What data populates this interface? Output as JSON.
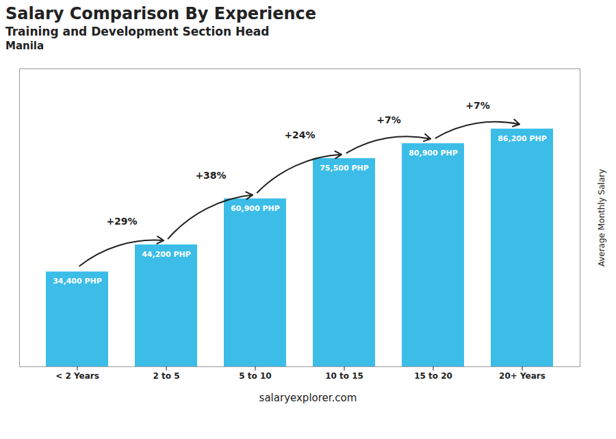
{
  "chart_data": {
    "type": "bar",
    "title": "Salary Comparison By Experience",
    "subtitle": "Training and Development Section Head",
    "categories": [
      "< 2 Years",
      "2 to 5",
      "5 to 10",
      "10 to 15",
      "15 to 20",
      "20+ Years"
    ],
    "values": [
      34400,
      44200,
      60900,
      75500,
      80900,
      86200
    ],
    "value_labels": [
      "34,400 PHP",
      "44,200 PHP",
      "60,900 PHP",
      "75,500 PHP",
      "80,900 PHP",
      "86,200 PHP"
    ],
    "data_labels": true,
    "color": "#3bbde8",
    "ylabel": "Average Monthly Salary",
    "ylim": [
      0,
      108000
    ],
    "tick_labels": "x",
    "annotations": [
      {
        "text": "Manila"
      },
      {
        "text": "+29%",
        "from": "< 2 Years",
        "to": "2 to 5"
      },
      {
        "text": "+38%",
        "from": "2 to 5",
        "to": "5 to 10"
      },
      {
        "text": "+24%",
        "from": "5 to 10",
        "to": "10 to 15"
      },
      {
        "text": "+7%",
        "from": "10 to 15",
        "to": "15 to 20"
      },
      {
        "text": "+7%",
        "from": "15 to 20",
        "to": "20+ Years"
      },
      {
        "text": "salaryexplorer.com"
      }
    ]
  }
}
